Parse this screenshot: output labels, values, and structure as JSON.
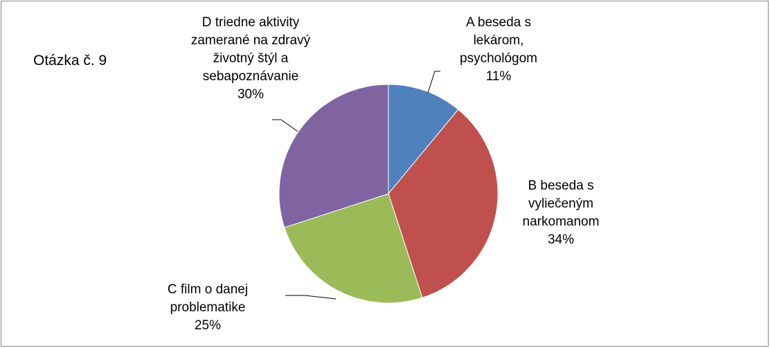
{
  "chart_data": {
    "type": "pie",
    "title": "Otázka č. 9",
    "categories": [
      "A beseda s lekárom, psychológom",
      "B beseda s vyliečeným narkomanom",
      "C film o danej problematike",
      "D triedne aktivity zamerané na zdravý životný štýl a sebapoznávanie"
    ],
    "values": [
      11,
      34,
      25,
      30
    ],
    "value_labels": [
      "11%",
      "34%",
      "25%",
      "30%"
    ],
    "colors": [
      "#4f81bd",
      "#c0504d",
      "#9bbb59",
      "#8064a2"
    ]
  }
}
